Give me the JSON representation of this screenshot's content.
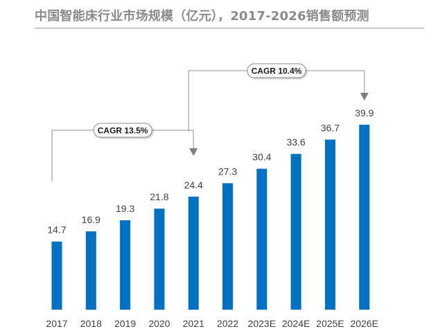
{
  "title": "中国智能床行业市场规模（亿元），2017-2026销售额预测",
  "colors": {
    "bar": "#0070c0",
    "connector": "#a6a6a6",
    "arrow": "#7f7f7f",
    "title": "#8a8a8a"
  },
  "chart_data": {
    "type": "bar",
    "title": "中国智能床行业市场规模（亿元），2017-2026销售额预测",
    "categories": [
      "2017",
      "2018",
      "2019",
      "2020",
      "2021",
      "2022",
      "2023E",
      "2024E",
      "2025E",
      "2026E"
    ],
    "values": [
      14.7,
      16.9,
      19.3,
      21.8,
      24.4,
      27.3,
      30.4,
      33.6,
      36.7,
      39.9
    ],
    "data_labels": [
      "14.7",
      "16.9",
      "19.3",
      "21.8",
      "24.4",
      "27.3",
      "30.4",
      "33.6",
      "36.7",
      "39.9"
    ],
    "xlabel": "",
    "ylabel": "",
    "ylim": [
      0,
      40
    ],
    "grid": false,
    "annotations": [
      {
        "text": "CAGR 13.5%",
        "from": "2017",
        "to": "2021"
      },
      {
        "text": "CAGR 10.4%",
        "from": "2021",
        "to": "2026E"
      }
    ]
  }
}
